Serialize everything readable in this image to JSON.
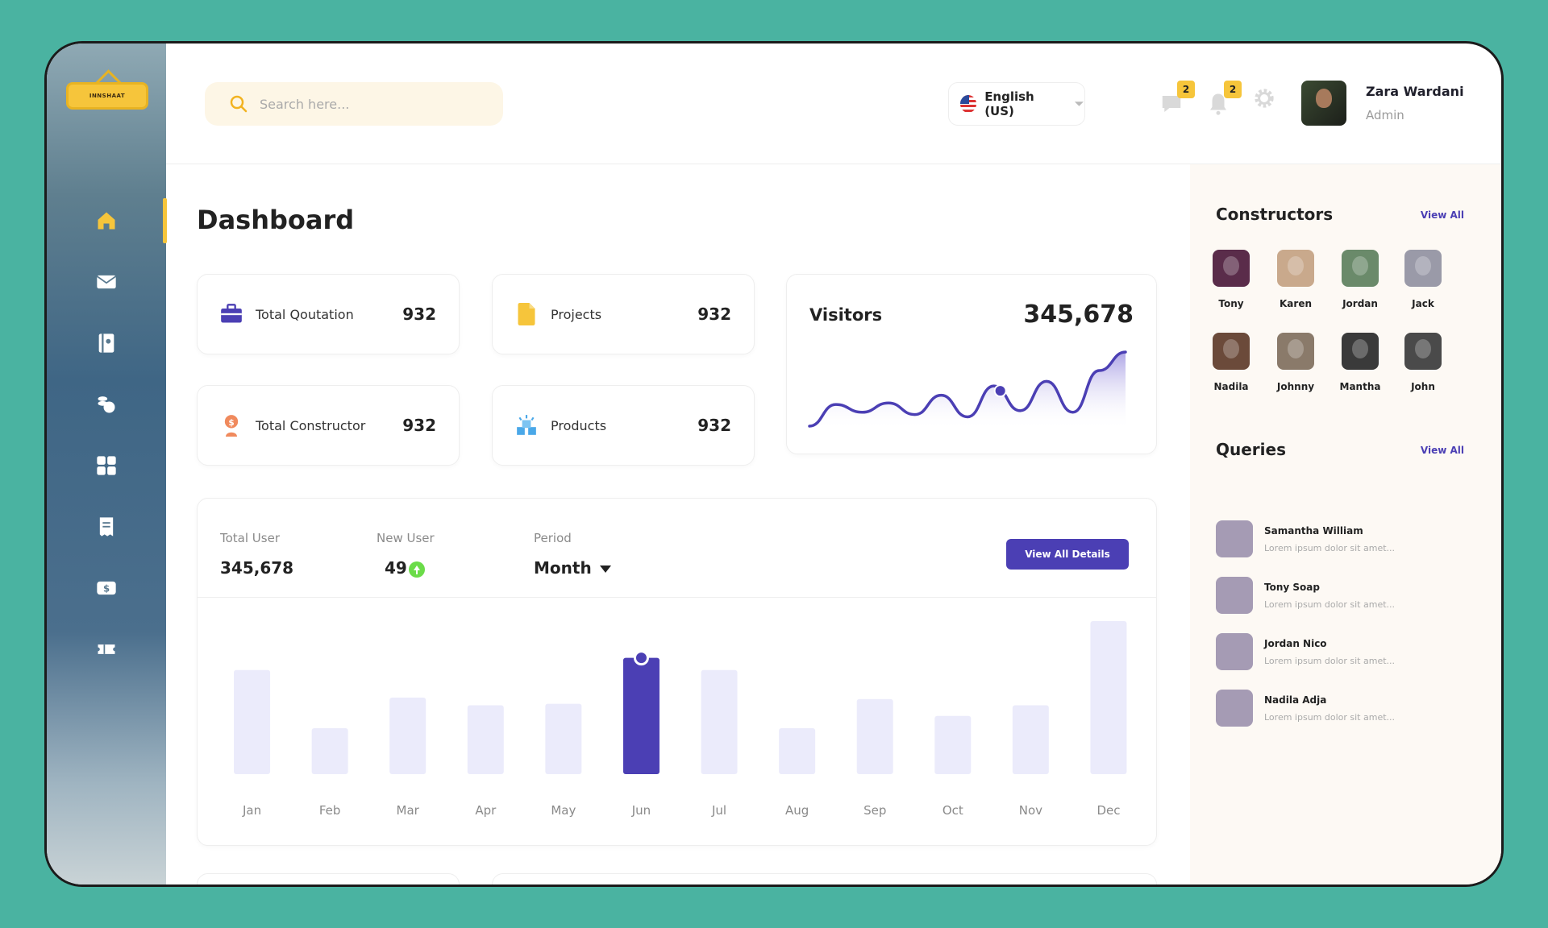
{
  "brand": {
    "logo_text": "INNSHAAT"
  },
  "search": {
    "placeholder": "Search here..."
  },
  "language": {
    "label": "English (US)"
  },
  "notifications": {
    "messages_count": "2",
    "alerts_count": "2"
  },
  "user": {
    "name": "Zara Wardani",
    "role": "Admin"
  },
  "page": {
    "title": "Dashboard"
  },
  "stats": [
    {
      "label": "Total Qoutation",
      "value": "932",
      "icon": "briefcase-icon",
      "color": "#4b3fb4"
    },
    {
      "label": "Projects",
      "value": "932",
      "icon": "document-icon",
      "color": "#f6c53b"
    },
    {
      "label": "Total Constructor",
      "value": "932",
      "icon": "constructor-icon",
      "color": "#f08a5d"
    },
    {
      "label": "Products",
      "value": "932",
      "icon": "products-icon",
      "color": "#4aa8e8"
    }
  ],
  "visitors": {
    "title": "Visitors",
    "value": "345,678",
    "chart_data": {
      "type": "area",
      "values": [
        0,
        28,
        18,
        30,
        15,
        40,
        12,
        52,
        20,
        58,
        18,
        72,
        96
      ]
    }
  },
  "users": {
    "total_label": "Total User",
    "total_value": "345,678",
    "new_label": "New User",
    "new_value": "49",
    "period_label": "Period",
    "period_value": "Month",
    "button_label": "View All Details"
  },
  "chart_data": {
    "type": "bar",
    "categories": [
      "Jan",
      "Feb",
      "Mar",
      "Apr",
      "May",
      "Jun",
      "Jul",
      "Aug",
      "Sep",
      "Oct",
      "Nov",
      "Dec"
    ],
    "values": [
      68,
      30,
      50,
      45,
      46,
      76,
      68,
      30,
      49,
      38,
      45,
      100
    ],
    "highlight_index": 5,
    "highlight_color": "#4b3fb4",
    "bar_color": "#ebebfb"
  },
  "constructors": {
    "title": "Constructors",
    "view_all": "View All",
    "items": [
      {
        "name": "Tony",
        "color": "#5a2c4a"
      },
      {
        "name": "Karen",
        "color": "#c9a98c"
      },
      {
        "name": "Jordan",
        "color": "#6a8a6a"
      },
      {
        "name": "Jack",
        "color": "#9a9aa8"
      },
      {
        "name": "Nadila",
        "color": "#6b4a3a"
      },
      {
        "name": "Johnny",
        "color": "#8a7a6a"
      },
      {
        "name": "Mantha",
        "color": "#3a3a3a"
      },
      {
        "name": "John",
        "color": "#4a4a4a"
      }
    ]
  },
  "queries": {
    "title": "Queries",
    "view_all": "View All",
    "items": [
      {
        "name": "Samantha William",
        "text": "Lorem ipsum dolor sit amet..."
      },
      {
        "name": "Tony Soap",
        "text": "Lorem ipsum dolor sit amet..."
      },
      {
        "name": "Jordan Nico",
        "text": "Lorem ipsum dolor sit amet..."
      },
      {
        "name": "Nadila Adja",
        "text": "Lorem ipsum dolor sit amet..."
      }
    ]
  }
}
